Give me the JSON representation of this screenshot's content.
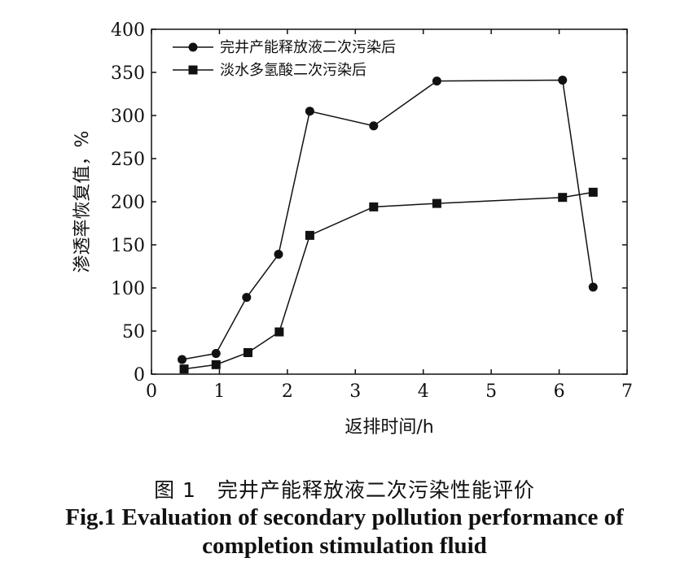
{
  "chart_data": {
    "type": "line",
    "xlabel": "返排时间/h",
    "ylabel": "渗透率恢复值，%",
    "xlim": [
      0,
      7
    ],
    "ylim": [
      0,
      400
    ],
    "xticks": [
      "0",
      "1",
      "2",
      "3",
      "4",
      "5",
      "6",
      "7"
    ],
    "yticks": [
      "0",
      "50",
      "100",
      "150",
      "200",
      "250",
      "300",
      "350",
      "400"
    ],
    "grid": false,
    "legend_position": "top-left",
    "series": [
      {
        "name": "完井产能释放液二次污染后",
        "marker": "circle",
        "x": [
          0.45,
          0.95,
          1.4,
          1.87,
          2.33,
          3.27,
          4.2,
          6.05,
          6.5
        ],
        "y": [
          17,
          24,
          89,
          139,
          305,
          288,
          340,
          341,
          101
        ]
      },
      {
        "name": "淡水多氢酸二次污染后",
        "marker": "square",
        "x": [
          0.48,
          0.95,
          1.42,
          1.88,
          2.33,
          3.27,
          4.2,
          6.05,
          6.5
        ],
        "y": [
          6,
          11,
          25,
          49,
          161,
          194,
          198,
          205,
          211
        ]
      }
    ]
  },
  "caption": {
    "cn": "图 1　完井产能释放液二次污染性能评价",
    "en_line1": "Fig.1 Evaluation of secondary pollution performance of",
    "en_line2": "completion stimulation fluid"
  }
}
